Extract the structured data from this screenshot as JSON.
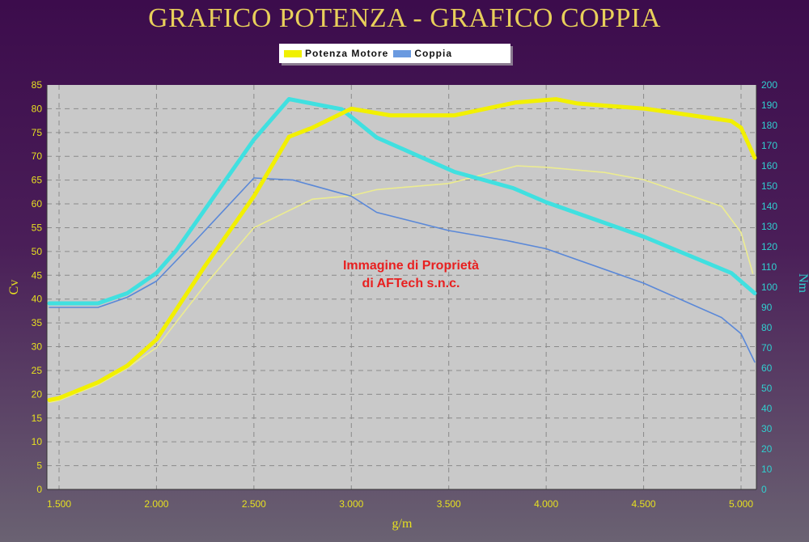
{
  "title": "GRAFICO POTENZA - GRAFICO COPPIA",
  "legend": [
    {
      "label": "Potenza Motore",
      "color": "#f0f000"
    },
    {
      "label": "Coppia",
      "color": "#6a9ae0"
    }
  ],
  "watermark": [
    "Immagine di Proprietà",
    "di AFTech s.n.c."
  ],
  "chart_data": {
    "type": "line",
    "title": "GRAFICO POTENZA - GRAFICO COPPIA",
    "xlabel": "g/m",
    "ylabel_left": "Cv",
    "ylabel_right": "Nm",
    "xlim": [
      1440,
      5080
    ],
    "ylim_left": [
      0,
      85
    ],
    "ylim_right": [
      0,
      200
    ],
    "x_ticks": [
      1500,
      2000,
      2500,
      3000,
      3500,
      4000,
      4500,
      5000
    ],
    "x_tick_labels": [
      "1.500",
      "2.000",
      "2.500",
      "3.000",
      "3.500",
      "4.000",
      "4.500",
      "5.000"
    ],
    "y_ticks_left": [
      0,
      5,
      10,
      15,
      20,
      25,
      30,
      35,
      40,
      45,
      50,
      55,
      60,
      65,
      70,
      75,
      80,
      85
    ],
    "y_ticks_right": [
      0,
      10,
      20,
      30,
      40,
      50,
      60,
      70,
      80,
      90,
      100,
      110,
      120,
      130,
      140,
      150,
      160,
      170,
      180,
      190,
      200
    ],
    "grid": true,
    "legend_position": "top",
    "series": [
      {
        "name": "Potenza Motore",
        "axis": "left",
        "color": "#f2f000",
        "width": "thick",
        "x": [
          1450,
          1500,
          1700,
          1850,
          2000,
          2250,
          2500,
          2680,
          2800,
          3000,
          3200,
          3530,
          3840,
          4050,
          4160,
          4510,
          4950,
          5000,
          5070
        ],
        "y": [
          18.8,
          19.2,
          22.5,
          26,
          31.5,
          47,
          61.6,
          74.1,
          76,
          80,
          78.6,
          78.6,
          81.3,
          82,
          81.1,
          80,
          77.4,
          76,
          69.7
        ]
      },
      {
        "axis": "left",
        "color": "#ecec90",
        "width": "thin",
        "x": [
          1450,
          1500,
          1700,
          1850,
          2000,
          2250,
          2500,
          2800,
          3000,
          3130,
          3500,
          3850,
          4000,
          4300,
          4500,
          4900,
          5000,
          5060
        ],
        "y": [
          18.3,
          18.7,
          22,
          25.5,
          29.8,
          43,
          55,
          61,
          61.7,
          63,
          64.3,
          68,
          67.7,
          66.6,
          65.1,
          59.5,
          54,
          45.4
        ]
      },
      {
        "name": "Coppia",
        "axis": "right",
        "color": "#40e0e0",
        "width": "thick",
        "x": [
          1450,
          1700,
          1850,
          2000,
          2100,
          2500,
          2680,
          2950,
          3130,
          3530,
          3830,
          4000,
          4500,
          4950,
          5070
        ],
        "y": [
          92,
          92,
          97,
          107,
          118,
          173,
          193,
          188,
          174,
          157,
          149,
          142,
          125,
          107,
          97
        ]
      },
      {
        "axis": "right",
        "color": "#5a88d8",
        "width": "thin",
        "x": [
          1450,
          1700,
          1850,
          2000,
          2200,
          2500,
          2700,
          3000,
          3130,
          3500,
          3800,
          4000,
          4500,
          4900,
          5000,
          5070
        ],
        "y": [
          90,
          90,
          95,
          103,
          123,
          154,
          153,
          145,
          137,
          128,
          123,
          119,
          102,
          85,
          77,
          63
        ]
      }
    ]
  }
}
